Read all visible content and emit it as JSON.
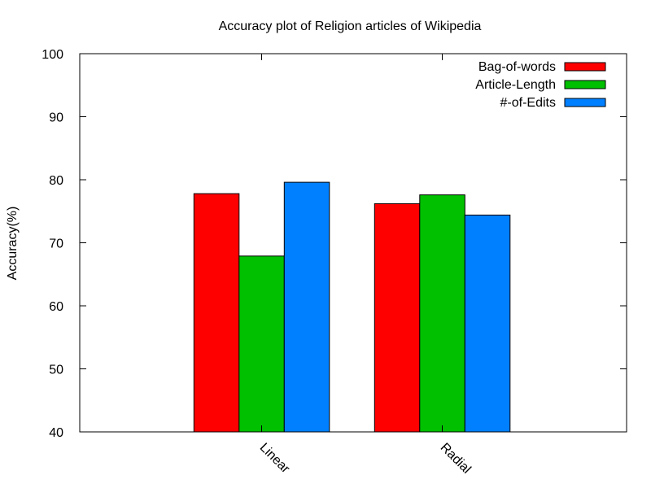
{
  "chart_data": {
    "type": "bar",
    "title": "Accuracy plot of Religion articles of Wikipedia",
    "xlabel": "",
    "ylabel": "Accuracy(%)",
    "categories": [
      "Linear",
      "Radial"
    ],
    "series": [
      {
        "name": "Bag-of-words",
        "values": [
          77.8,
          76.2
        ],
        "color": "#ff0000"
      },
      {
        "name": "Article-Length",
        "values": [
          67.9,
          77.6
        ],
        "color": "#00c000"
      },
      {
        "name": "#-of-Edits",
        "values": [
          79.6,
          74.4
        ],
        "color": "#0080ff"
      }
    ],
    "ylim": [
      40,
      100
    ],
    "yticks": [
      40,
      50,
      60,
      70,
      80,
      90,
      100
    ],
    "grid": false,
    "legend_position": "top-right"
  }
}
